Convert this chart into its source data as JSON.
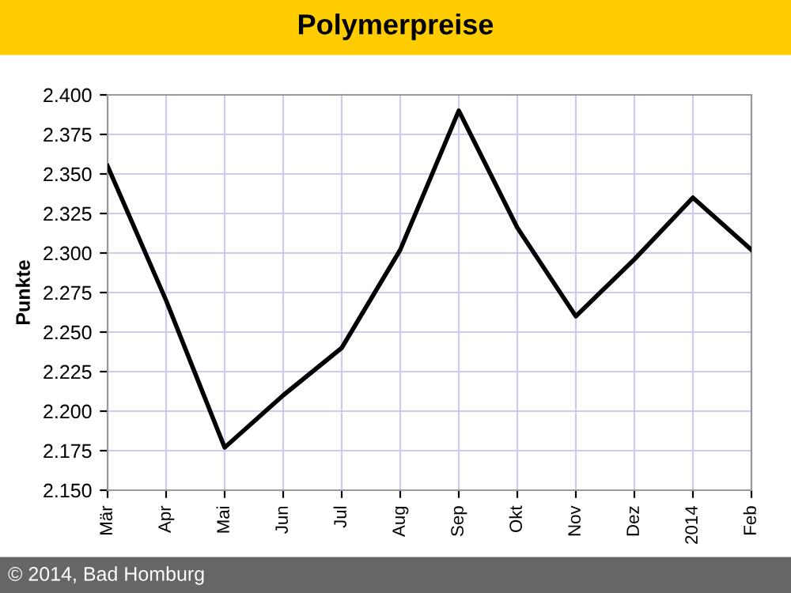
{
  "chart_data": {
    "type": "line",
    "title": "Polymerpreise",
    "ylabel": "Punkte",
    "categories": [
      "Mär",
      "Apr",
      "Mai",
      "Jun",
      "Jul",
      "Aug",
      "Sep",
      "Okt",
      "Nov",
      "Dez",
      "2014",
      "Feb"
    ],
    "series": [
      {
        "color": "#000000",
        "values": [
          2.355,
          2.27,
          2.177,
          2.21,
          2.24,
          2.302,
          2.39,
          2.316,
          2.26,
          2.296,
          2.335,
          2.302
        ]
      }
    ],
    "ylim": [
      2.15,
      2.4
    ],
    "yticks": [
      {
        "value": 2.15,
        "label": "2.150"
      },
      {
        "value": 2.175,
        "label": "2.175"
      },
      {
        "value": 2.2,
        "label": "2.200"
      },
      {
        "value": 2.225,
        "label": "2.225"
      },
      {
        "value": 2.25,
        "label": "2.250"
      },
      {
        "value": 2.275,
        "label": "2.275"
      },
      {
        "value": 2.3,
        "label": "2.300"
      },
      {
        "value": 2.325,
        "label": "2.325"
      },
      {
        "value": 2.35,
        "label": "2.350"
      },
      {
        "value": 2.375,
        "label": "2.375"
      },
      {
        "value": 2.4,
        "label": "2.400"
      }
    ],
    "grid": true,
    "marker": "none",
    "line_style": "solid",
    "annotations": [
      "© 2014, Bad Homburg"
    ]
  }
}
